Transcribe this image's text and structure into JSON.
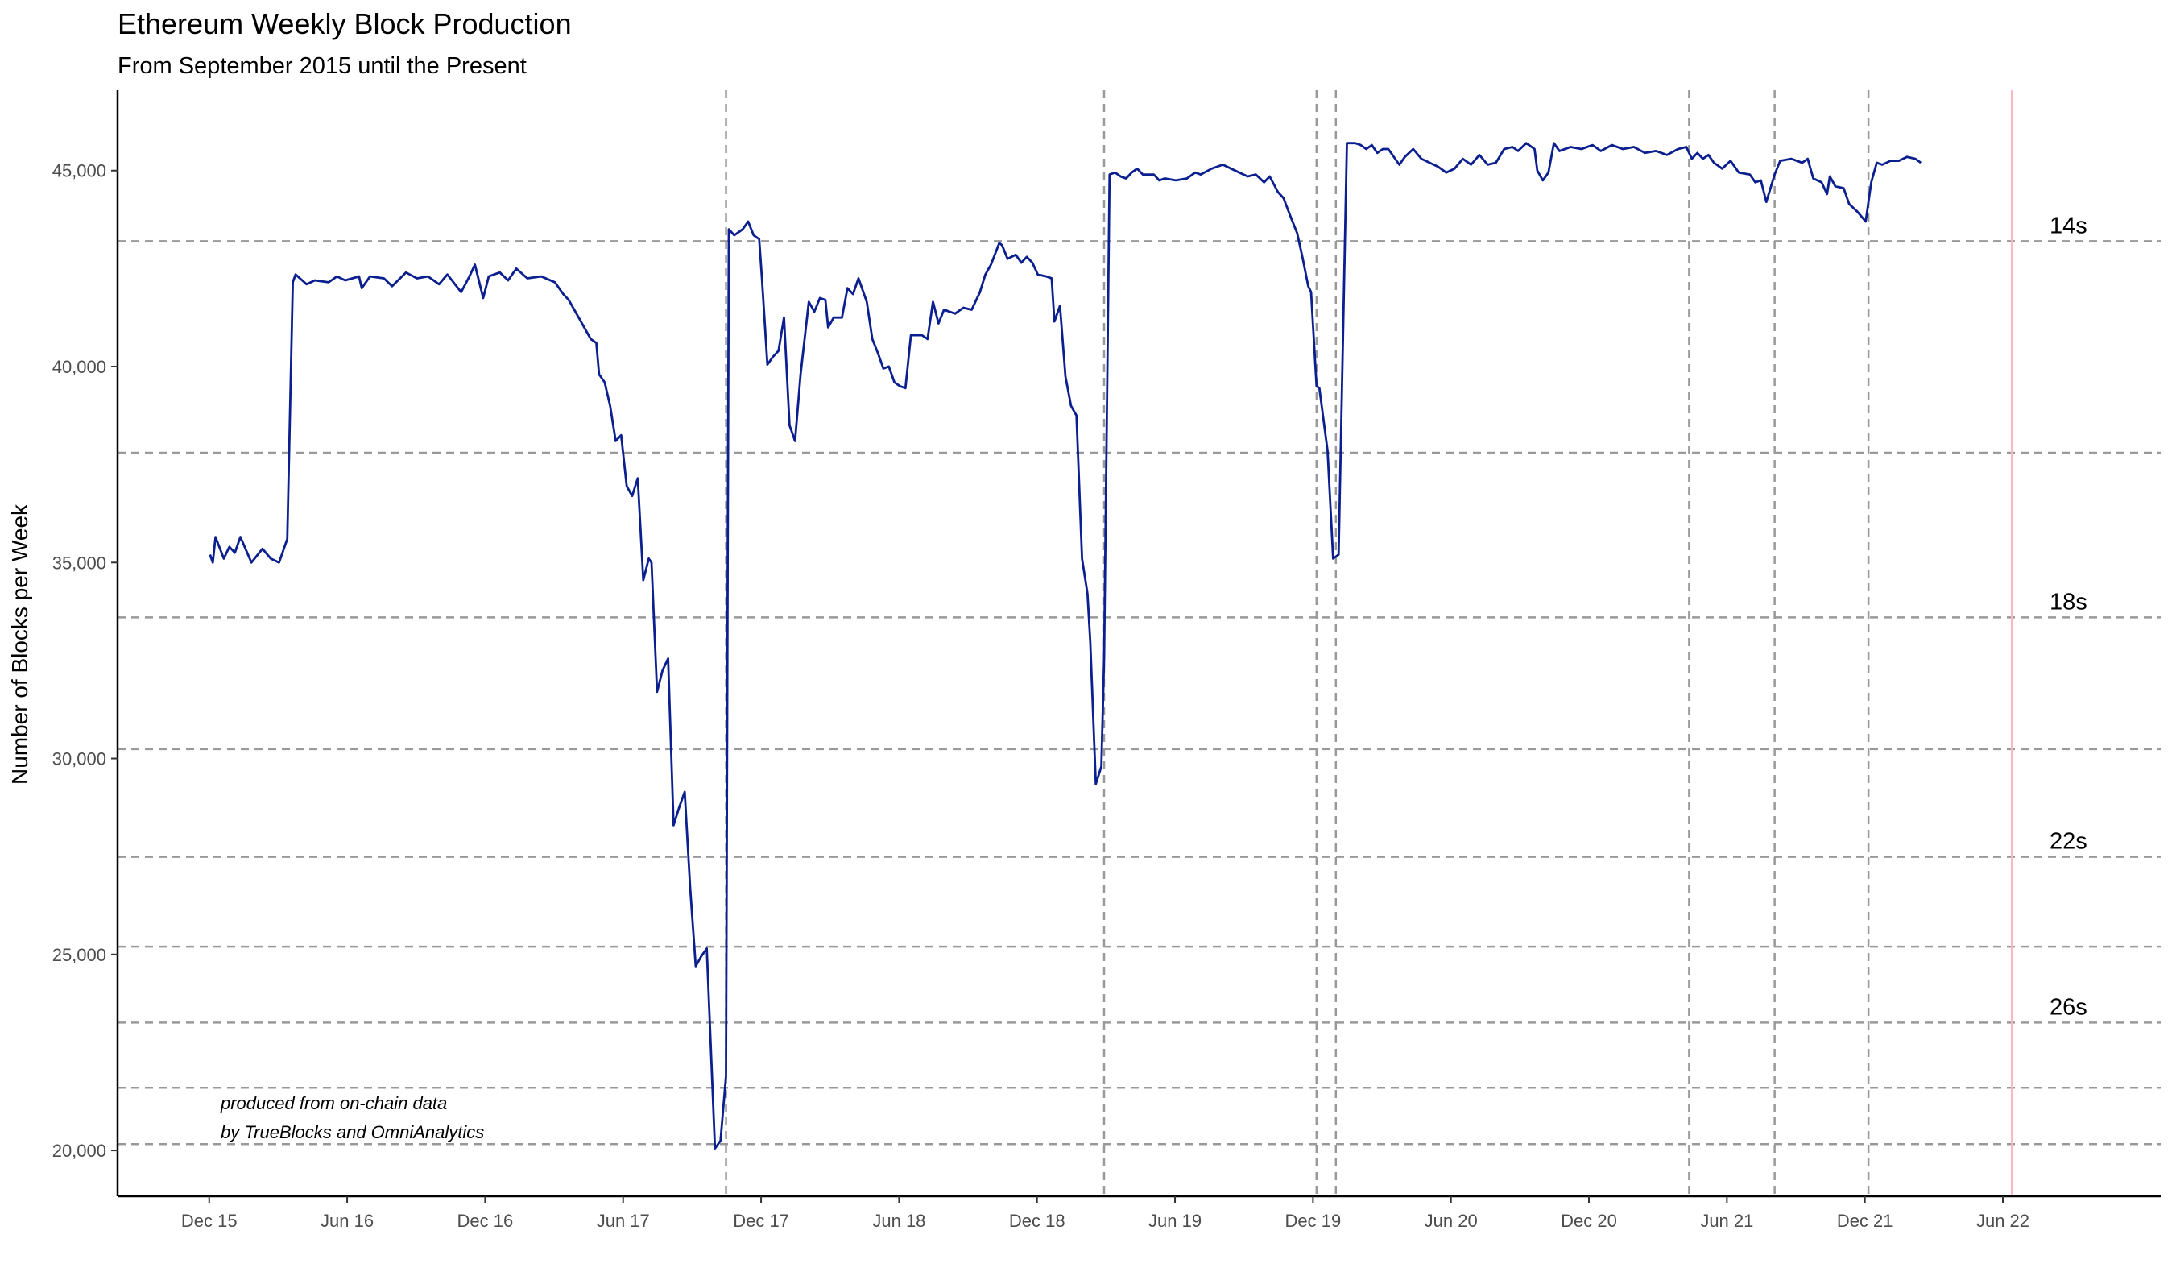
{
  "chart_data": {
    "type": "line",
    "title": "Ethereum Weekly Block Production",
    "subtitle": "From September 2015 until the Present",
    "y_label": "Number of Blocks per Week",
    "annotation": [
      "produced from on-chain data",
      "by TrueBlocks and OmniAnalytics"
    ],
    "color": "#0b1f8f",
    "x": [
      2015.92,
      2015.93,
      2015.94,
      2015.97,
      2015.99,
      2016.01,
      2016.03,
      2016.07,
      2016.11,
      2016.14,
      2016.17,
      2016.2,
      2016.22,
      2016.23,
      2016.27,
      2016.3,
      2016.35,
      2016.38,
      2016.41,
      2016.46,
      2016.47,
      2016.5,
      2016.55,
      2016.58,
      2016.63,
      2016.67,
      2016.71,
      2016.75,
      2016.78,
      2016.83,
      2016.86,
      2016.88,
      2016.91,
      2016.93,
      2016.97,
      2017.0,
      2017.03,
      2017.07,
      2017.12,
      2017.17,
      2017.2,
      2017.22,
      2017.26,
      2017.3,
      2017.32,
      2017.33,
      2017.35,
      2017.37,
      2017.39,
      2017.41,
      2017.43,
      2017.45,
      2017.47,
      2017.49,
      2017.51,
      2017.52,
      2017.54,
      2017.56,
      2017.58,
      2017.6,
      2017.62,
      2017.64,
      2017.66,
      2017.68,
      2017.7,
      2017.72,
      2017.75,
      2017.77,
      2017.79,
      2017.8,
      2017.82,
      2017.85,
      2017.87,
      2017.89,
      2017.91,
      2017.92,
      2017.94,
      2017.96,
      2017.98,
      2018.0,
      2018.02,
      2018.04,
      2018.06,
      2018.09,
      2018.11,
      2018.13,
      2018.15,
      2018.16,
      2018.18,
      2018.21,
      2018.23,
      2018.25,
      2018.27,
      2018.3,
      2018.32,
      2018.34,
      2018.36,
      2018.38,
      2018.4,
      2018.42,
      2018.44,
      2018.46,
      2018.5,
      2018.52,
      2018.54,
      2018.56,
      2018.58,
      2018.62,
      2018.65,
      2018.68,
      2018.71,
      2018.73,
      2018.75,
      2018.78,
      2018.79,
      2018.81,
      2018.84,
      2018.86,
      2018.88,
      2018.9,
      2018.92,
      2018.95,
      2018.97,
      2018.98,
      2019.0,
      2019.02,
      2019.04,
      2019.06,
      2019.08,
      2019.1,
      2019.11,
      2019.13,
      2019.15,
      2019.16,
      2019.18,
      2019.2,
      2019.22,
      2019.24,
      2019.26,
      2019.28,
      2019.3,
      2019.34,
      2019.36,
      2019.38,
      2019.42,
      2019.46,
      2019.49,
      2019.51,
      2019.55,
      2019.59,
      2019.62,
      2019.65,
      2019.68,
      2019.71,
      2019.74,
      2019.76,
      2019.79,
      2019.81,
      2019.84,
      2019.86,
      2019.88,
      2019.9,
      2019.91,
      2019.93,
      2019.94,
      2019.97,
      2019.99,
      2020.01,
      2020.04,
      2020.07,
      2020.09,
      2020.11,
      2020.13,
      2020.15,
      2020.17,
      2020.19,
      2020.23,
      2020.25,
      2020.28,
      2020.31,
      2020.34,
      2020.37,
      2020.4,
      2020.43,
      2020.46,
      2020.49,
      2020.52,
      2020.55,
      2020.58,
      2020.61,
      2020.64,
      2020.66,
      2020.69,
      2020.72,
      2020.73,
      2020.75,
      2020.77,
      2020.79,
      2020.81,
      2020.85,
      2020.89,
      2020.93,
      2020.96,
      2021.0,
      2021.04,
      2021.08,
      2021.12,
      2021.16,
      2021.2,
      2021.24,
      2021.27,
      2021.29,
      2021.31,
      2021.33,
      2021.35,
      2021.37,
      2021.4,
      2021.43,
      2021.46,
      2021.5,
      2021.52,
      2021.54,
      2021.56,
      2021.59,
      2021.61,
      2021.65,
      2021.69,
      2021.71,
      2021.73,
      2021.76,
      2021.78,
      2021.79,
      2021.81,
      2021.84,
      2021.86,
      2021.89,
      2021.92,
      2021.94,
      2021.96,
      2021.98,
      2022.01,
      2022.04,
      2022.07,
      2022.1,
      2022.12
    ],
    "values": [
      35200,
      35000,
      35650,
      35100,
      35400,
      35250,
      35650,
      35000,
      35350,
      35100,
      35000,
      35600,
      42150,
      42350,
      42100,
      42200,
      42150,
      42300,
      42200,
      42300,
      42000,
      42300,
      42250,
      42050,
      42400,
      42250,
      42300,
      42100,
      42350,
      41900,
      42300,
      42600,
      41750,
      42300,
      42400,
      42200,
      42500,
      42250,
      42300,
      42150,
      41850,
      41700,
      41200,
      40700,
      40600,
      39800,
      39600,
      39000,
      38100,
      38250,
      36950,
      36700,
      37150,
      34550,
      35100,
      35000,
      31700,
      32250,
      32550,
      28300,
      28750,
      29150,
      26700,
      24700,
      24950,
      25150,
      20050,
      20250,
      21900,
      43500,
      43350,
      43500,
      43700,
      43350,
      43250,
      42250,
      40050,
      40250,
      40400,
      41250,
      38500,
      38100,
      39800,
      41650,
      41400,
      41750,
      41700,
      41000,
      41250,
      41250,
      42000,
      41850,
      42250,
      41650,
      40700,
      40350,
      39950,
      40000,
      39600,
      39500,
      39450,
      40800,
      40800,
      40700,
      41650,
      41100,
      41450,
      41350,
      41500,
      41450,
      41900,
      42350,
      42600,
      43150,
      43100,
      42750,
      42850,
      42650,
      42800,
      42650,
      42350,
      42300,
      42250,
      41150,
      41550,
      39750,
      39000,
      38750,
      35100,
      34200,
      32950,
      29350,
      29800,
      32550,
      44900,
      44950,
      44850,
      44800,
      44950,
      45050,
      44900,
      44900,
      44750,
      44800,
      44750,
      44800,
      44950,
      44900,
      45050,
      45150,
      45050,
      44950,
      44850,
      44900,
      44700,
      44850,
      44450,
      44300,
      43750,
      43400,
      42750,
      42050,
      41900,
      39500,
      39450,
      37850,
      35100,
      35200,
      45700,
      45700,
      45650,
      45550,
      45650,
      45450,
      45550,
      45550,
      45150,
      45350,
      45550,
      45300,
      45200,
      45100,
      44950,
      45050,
      45300,
      45150,
      45400,
      45150,
      45200,
      45550,
      45600,
      45500,
      45700,
      45550,
      45000,
      44750,
      44950,
      45700,
      45500,
      45600,
      45550,
      45650,
      45500,
      45650,
      45550,
      45600,
      45450,
      45500,
      45400,
      45550,
      45600,
      45300,
      45450,
      45300,
      45400,
      45200,
      45050,
      45250,
      44950,
      44900,
      44700,
      44750,
      44200,
      44900,
      45250,
      45300,
      45200,
      45300,
      44800,
      44700,
      44400,
      44850,
      44600,
      44550,
      44150,
      43950,
      43700,
      44700,
      45200,
      45150,
      45250,
      45250,
      45350,
      45300,
      45200
    ],
    "xlim": [
      2015.585,
      2022.989
    ],
    "xticks": [
      {
        "value": 2015.917,
        "label": "Dec 15"
      },
      {
        "value": 2016.417,
        "label": "Jun 16"
      },
      {
        "value": 2016.917,
        "label": "Dec 16"
      },
      {
        "value": 2017.417,
        "label": "Jun 17"
      },
      {
        "value": 2017.917,
        "label": "Dec 17"
      },
      {
        "value": 2018.417,
        "label": "Jun 18"
      },
      {
        "value": 2018.917,
        "label": "Dec 18"
      },
      {
        "value": 2019.417,
        "label": "Jun 19"
      },
      {
        "value": 2019.917,
        "label": "Dec 19"
      },
      {
        "value": 2020.417,
        "label": "Jun 20"
      },
      {
        "value": 2020.917,
        "label": "Dec 20"
      },
      {
        "value": 2021.417,
        "label": "Jun 21"
      },
      {
        "value": 2021.917,
        "label": "Dec 21"
      },
      {
        "value": 2022.417,
        "label": "Jun 22"
      }
    ],
    "ylim": [
      18830,
      47050
    ],
    "yticks": [
      {
        "value": 20000,
        "label": "20,000"
      },
      {
        "value": 25000,
        "label": "25,000"
      },
      {
        "value": 30000,
        "label": "30,000"
      },
      {
        "value": 35000,
        "label": "35,000"
      },
      {
        "value": 40000,
        "label": "40,000"
      },
      {
        "value": 45000,
        "label": "45,000"
      }
    ],
    "vlines": [
      2017.79,
      2019.16,
      2019.93,
      2020.0,
      2021.28,
      2021.59,
      2021.93
    ],
    "vline_color": "#999999",
    "marker_line": 2022.45,
    "marker_color": "#ffb6c1",
    "hlines": [
      {
        "value": 43200,
        "label": "14s"
      },
      {
        "value": 37800
      },
      {
        "value": 33600,
        "label": "18s"
      },
      {
        "value": 30240
      },
      {
        "value": 27491,
        "label": "22s"
      },
      {
        "value": 25200
      },
      {
        "value": 23262,
        "label": "26s"
      },
      {
        "value": 21600
      },
      {
        "value": 20160
      }
    ],
    "grid": false
  }
}
